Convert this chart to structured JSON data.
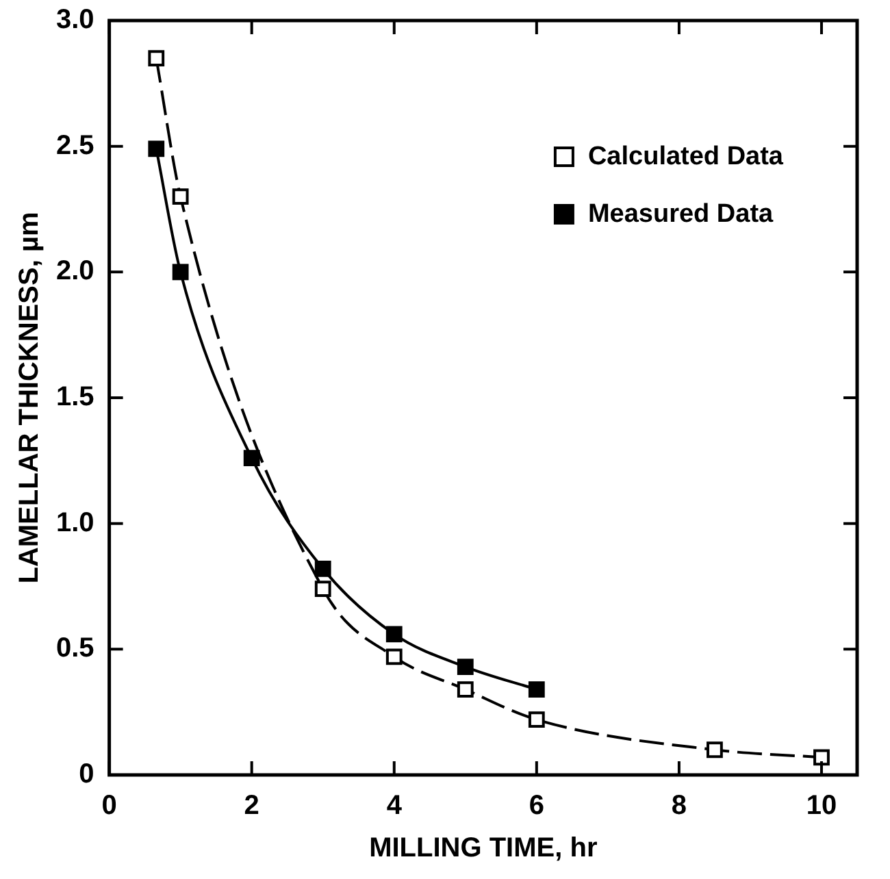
{
  "chart_data": {
    "type": "line",
    "xlabel": "MILLING TIME, hr",
    "ylabel": "LAMELLAR THICKNESS, µm",
    "series": [
      {
        "name": "Calculated Data",
        "color": "#000000",
        "line_style": "dashed",
        "x": [
          0.66,
          1.0,
          2.0,
          3.0,
          4.0,
          5.0,
          6.0,
          8.5,
          10.0
        ],
        "values": [
          2.85,
          2.3,
          null,
          0.74,
          0.47,
          0.34,
          0.22,
          0.1,
          0.07
        ]
      },
      {
        "name": "Measured Data",
        "color": "#000000",
        "line_style": "solid",
        "x": [
          0.66,
          1.0,
          2.0,
          3.0,
          4.0,
          5.0,
          6.0
        ],
        "values": [
          2.49,
          2.0,
          1.26,
          0.82,
          0.56,
          0.43,
          0.34
        ]
      }
    ],
    "xlim": [
      0,
      10.5
    ],
    "xticks": [
      0,
      2,
      4,
      6,
      8,
      10
    ],
    "ylim": [
      0,
      3
    ],
    "yticks": [
      0,
      {
        "value": 0.5,
        "label": "0.5"
      },
      {
        "value": 1,
        "label": "1.0"
      },
      {
        "value": 1.5,
        "label": "1.5"
      },
      {
        "value": 2,
        "label": "2.0"
      },
      {
        "value": 2.5,
        "label": "2.5"
      },
      {
        "value": 3,
        "label": "3.0"
      }
    ],
    "marker": "square",
    "grid": false,
    "legend": "top right"
  }
}
